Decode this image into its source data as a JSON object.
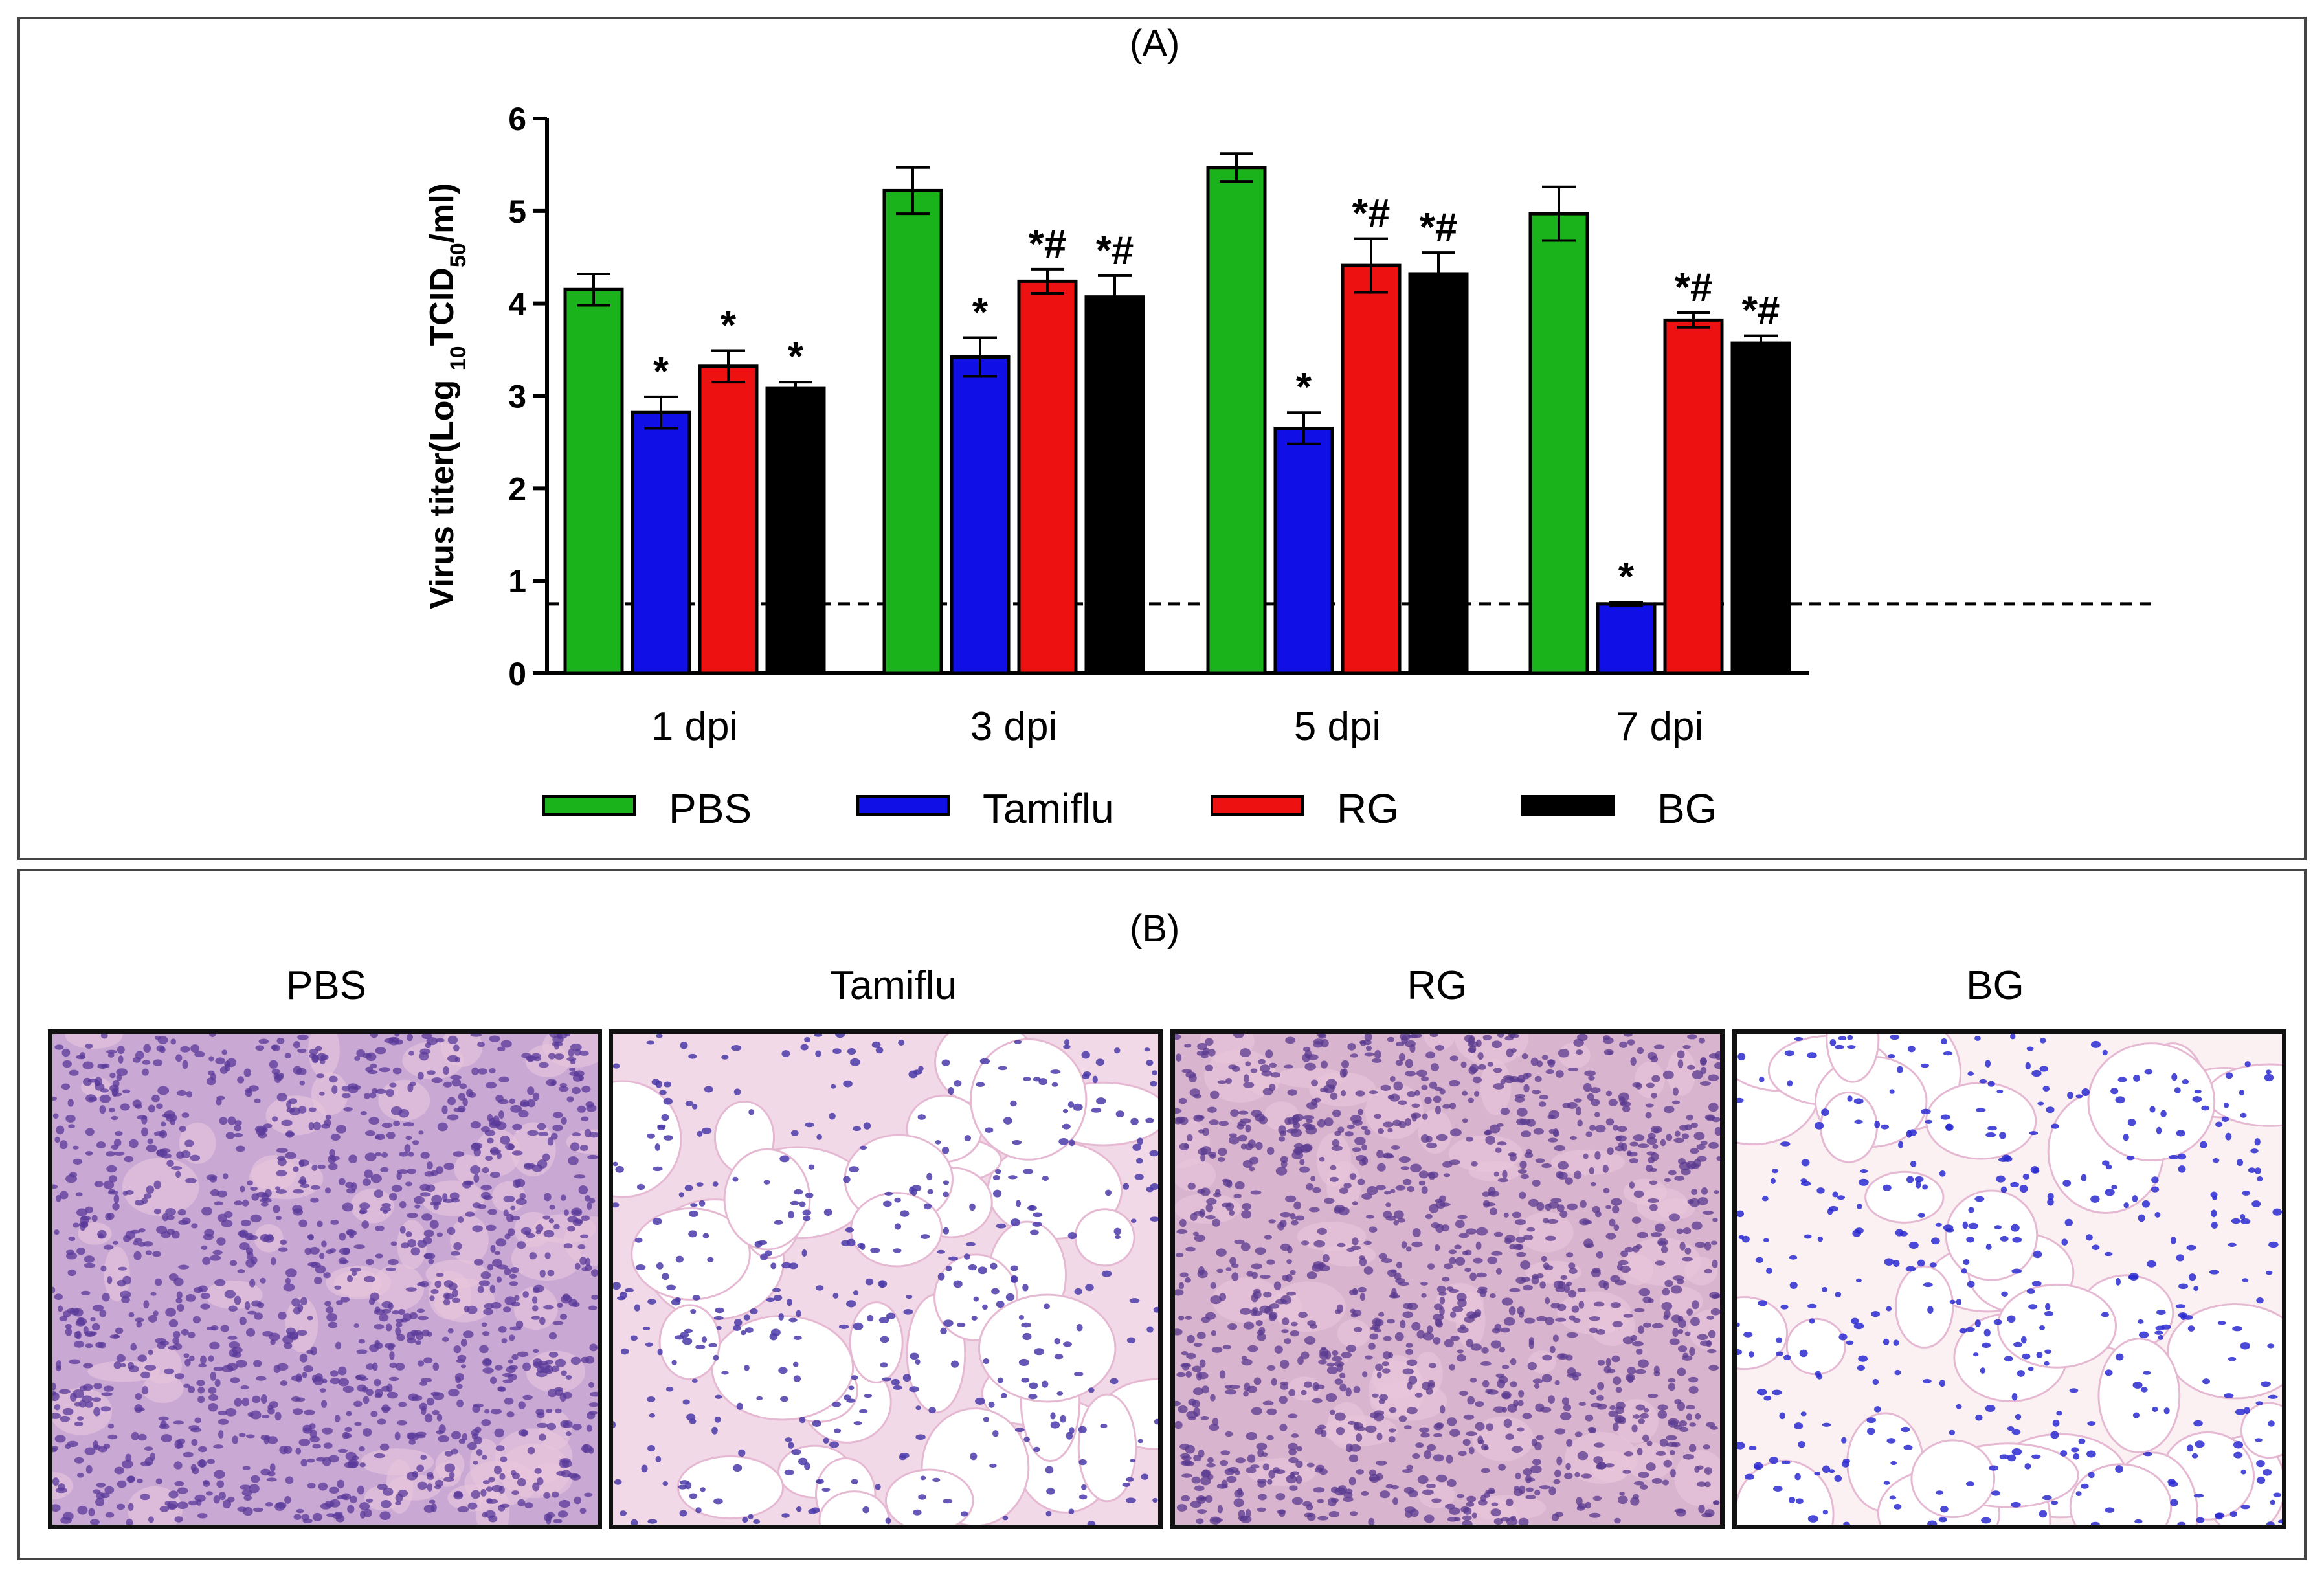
{
  "panel_a": {
    "label": "(A)",
    "chart_data": {
      "type": "bar",
      "title": "",
      "xlabel": "",
      "ylabel": "Virus titer(Log 10TCID50/ml)",
      "ylabel_parts": {
        "pre": "Virus titer(Log ",
        "sub1": "10",
        "mid": "TCID",
        "sub2": "50",
        "post": "/ml)"
      },
      "ylim": [
        0,
        6
      ],
      "yticks": [
        0,
        1,
        2,
        3,
        4,
        5,
        6
      ],
      "categories": [
        "1 dpi",
        "3 dpi",
        "5 dpi",
        "7 dpi"
      ],
      "detection_limit": 0.75,
      "series": [
        {
          "name": "PBS",
          "color": "#1bb31b",
          "values": [
            4.15,
            5.22,
            5.47,
            4.97
          ],
          "errors": [
            0.17,
            0.25,
            0.15,
            0.29
          ],
          "annotations": [
            "",
            "",
            "",
            ""
          ]
        },
        {
          "name": "Tamiflu",
          "color": "#1010e6",
          "values": [
            2.82,
            3.42,
            2.65,
            0.75
          ],
          "errors": [
            0.17,
            0.21,
            0.17,
            0.02
          ],
          "annotations": [
            "*",
            "*",
            "*",
            "*"
          ]
        },
        {
          "name": "RG",
          "color": "#ee1111",
          "values": [
            3.32,
            4.24,
            4.41,
            3.82
          ],
          "errors": [
            0.17,
            0.13,
            0.29,
            0.08
          ],
          "annotations": [
            "*",
            "*#",
            "*#",
            "*#"
          ]
        },
        {
          "name": "BG",
          "color": "#000000",
          "values": [
            3.08,
            4.07,
            4.32,
            3.57
          ],
          "errors": [
            0.07,
            0.23,
            0.23,
            0.08
          ],
          "annotations": [
            "*",
            "*#",
            "*#",
            "*#"
          ]
        }
      ],
      "legend_position": "bottom"
    }
  },
  "panel_b": {
    "label": "(B)",
    "panels": [
      {
        "title": "PBS",
        "tissue_color": "#c9a8d4",
        "nuclei_color": "#5a3a9a",
        "density": "high"
      },
      {
        "title": "Tamiflu",
        "tissue_color": "#f2d9e8",
        "nuclei_color": "#4a3aa8",
        "density": "low"
      },
      {
        "title": "RG",
        "tissue_color": "#d9b4cf",
        "nuclei_color": "#5a3a8f",
        "density": "high"
      },
      {
        "title": "BG",
        "tissue_color": "#fbf1f3",
        "nuclei_color": "#2a2ad0",
        "density": "low"
      }
    ]
  }
}
